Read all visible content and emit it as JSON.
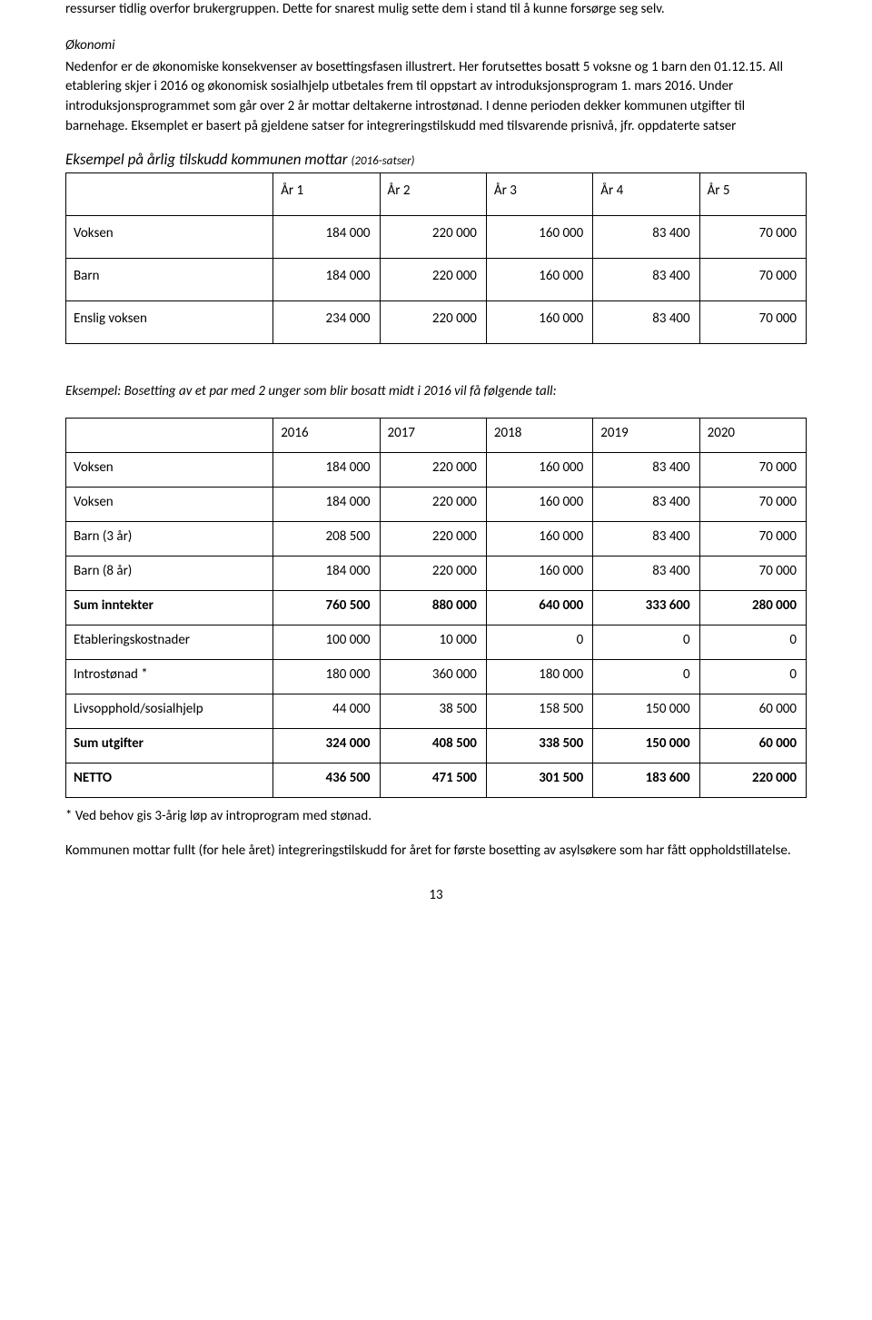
{
  "intro": {
    "p1": "ressurser tidlig overfor brukergruppen. Dette for snarest mulig sette dem i stand til å kunne forsørge seg selv.",
    "heading": "Økonomi",
    "p2": "Nedenfor er de økonomiske konsekvenser av bosettingsfasen illustrert. Her forutsettes bosatt 5 voksne og 1 barn den 01.12.15. All etablering skjer i 2016 og økonomisk sosialhjelp utbetales frem til oppstart av introduksjonsprogram 1. mars 2016. Under introduksjonsprogrammet som går over 2 år mottar deltakerne introstønad. I denne perioden dekker kommunen utgifter til barnehage. Eksemplet er basert på gjeldene satser for integreringstilskudd med tilsvarende prisnivå, jfr. oppdaterte satser"
  },
  "table1": {
    "title_main": "Eksempel på årlig tilskudd kommunen mottar",
    "title_sub": "(2016-satser)",
    "headers": [
      "År 1",
      "År 2",
      "År 3",
      "År 4",
      "År 5"
    ],
    "rows": [
      {
        "label": "Voksen",
        "vals": [
          "184 000",
          "220 000",
          "160 000",
          "83 400",
          "70 000"
        ]
      },
      {
        "label": "Barn",
        "vals": [
          "184 000",
          "220 000",
          "160 000",
          "83 400",
          "70 000"
        ]
      },
      {
        "label": "Enslig voksen",
        "vals": [
          "234 000",
          "220 000",
          "160 000",
          "83 400",
          "70 000"
        ]
      }
    ]
  },
  "example2_label": "Eksempel: Bosetting av et par med 2 unger som blir bosatt midt i 2016 vil få følgende tall:",
  "table2": {
    "headers": [
      "2016",
      "2017",
      "2018",
      "2019",
      "2020"
    ],
    "rows": [
      {
        "label": "Voksen",
        "bold": false,
        "vals": [
          "184 000",
          "220 000",
          "160 000",
          "83 400",
          "70 000"
        ]
      },
      {
        "label": "Voksen",
        "bold": false,
        "vals": [
          "184 000",
          "220 000",
          "160 000",
          "83 400",
          "70 000"
        ]
      },
      {
        "label": "Barn (3 år)",
        "bold": false,
        "vals": [
          "208 500",
          "220 000",
          "160 000",
          "83 400",
          "70 000"
        ]
      },
      {
        "label": "Barn (8 år)",
        "bold": false,
        "vals": [
          "184 000",
          "220 000",
          "160 000",
          "83 400",
          "70 000"
        ]
      },
      {
        "label": "Sum inntekter",
        "bold": true,
        "vals": [
          "760 500",
          "880 000",
          "640 000",
          "333 600",
          "280 000"
        ]
      },
      {
        "label": "Etableringskostnader",
        "bold": false,
        "vals": [
          "100 000",
          "10 000",
          "0",
          "0",
          "0"
        ]
      },
      {
        "label": "Introstønad *",
        "bold": false,
        "vals": [
          "180 000",
          "360 000",
          "180 000",
          "0",
          "0"
        ]
      },
      {
        "label": "Livsopphold/sosialhjelp",
        "bold": false,
        "vals": [
          "44 000",
          "38 500",
          "158 500",
          "150 000",
          "60 000"
        ]
      },
      {
        "label": "Sum utgifter",
        "bold": true,
        "vals": [
          "324 000",
          "408 500",
          "338 500",
          "150 000",
          "60 000"
        ]
      },
      {
        "label": "NETTO",
        "bold": true,
        "vals": [
          "436 500",
          "471 500",
          "301 500",
          "183 600",
          "220 000"
        ]
      }
    ]
  },
  "footnote": "* Ved behov gis 3-årig løp av introprogram med stønad.",
  "closing": "Kommunen mottar fullt (for hele året) integreringstilskudd for året for første bosetting av asylsøkere som har fått oppholdstillatelse.",
  "page_number": "13"
}
